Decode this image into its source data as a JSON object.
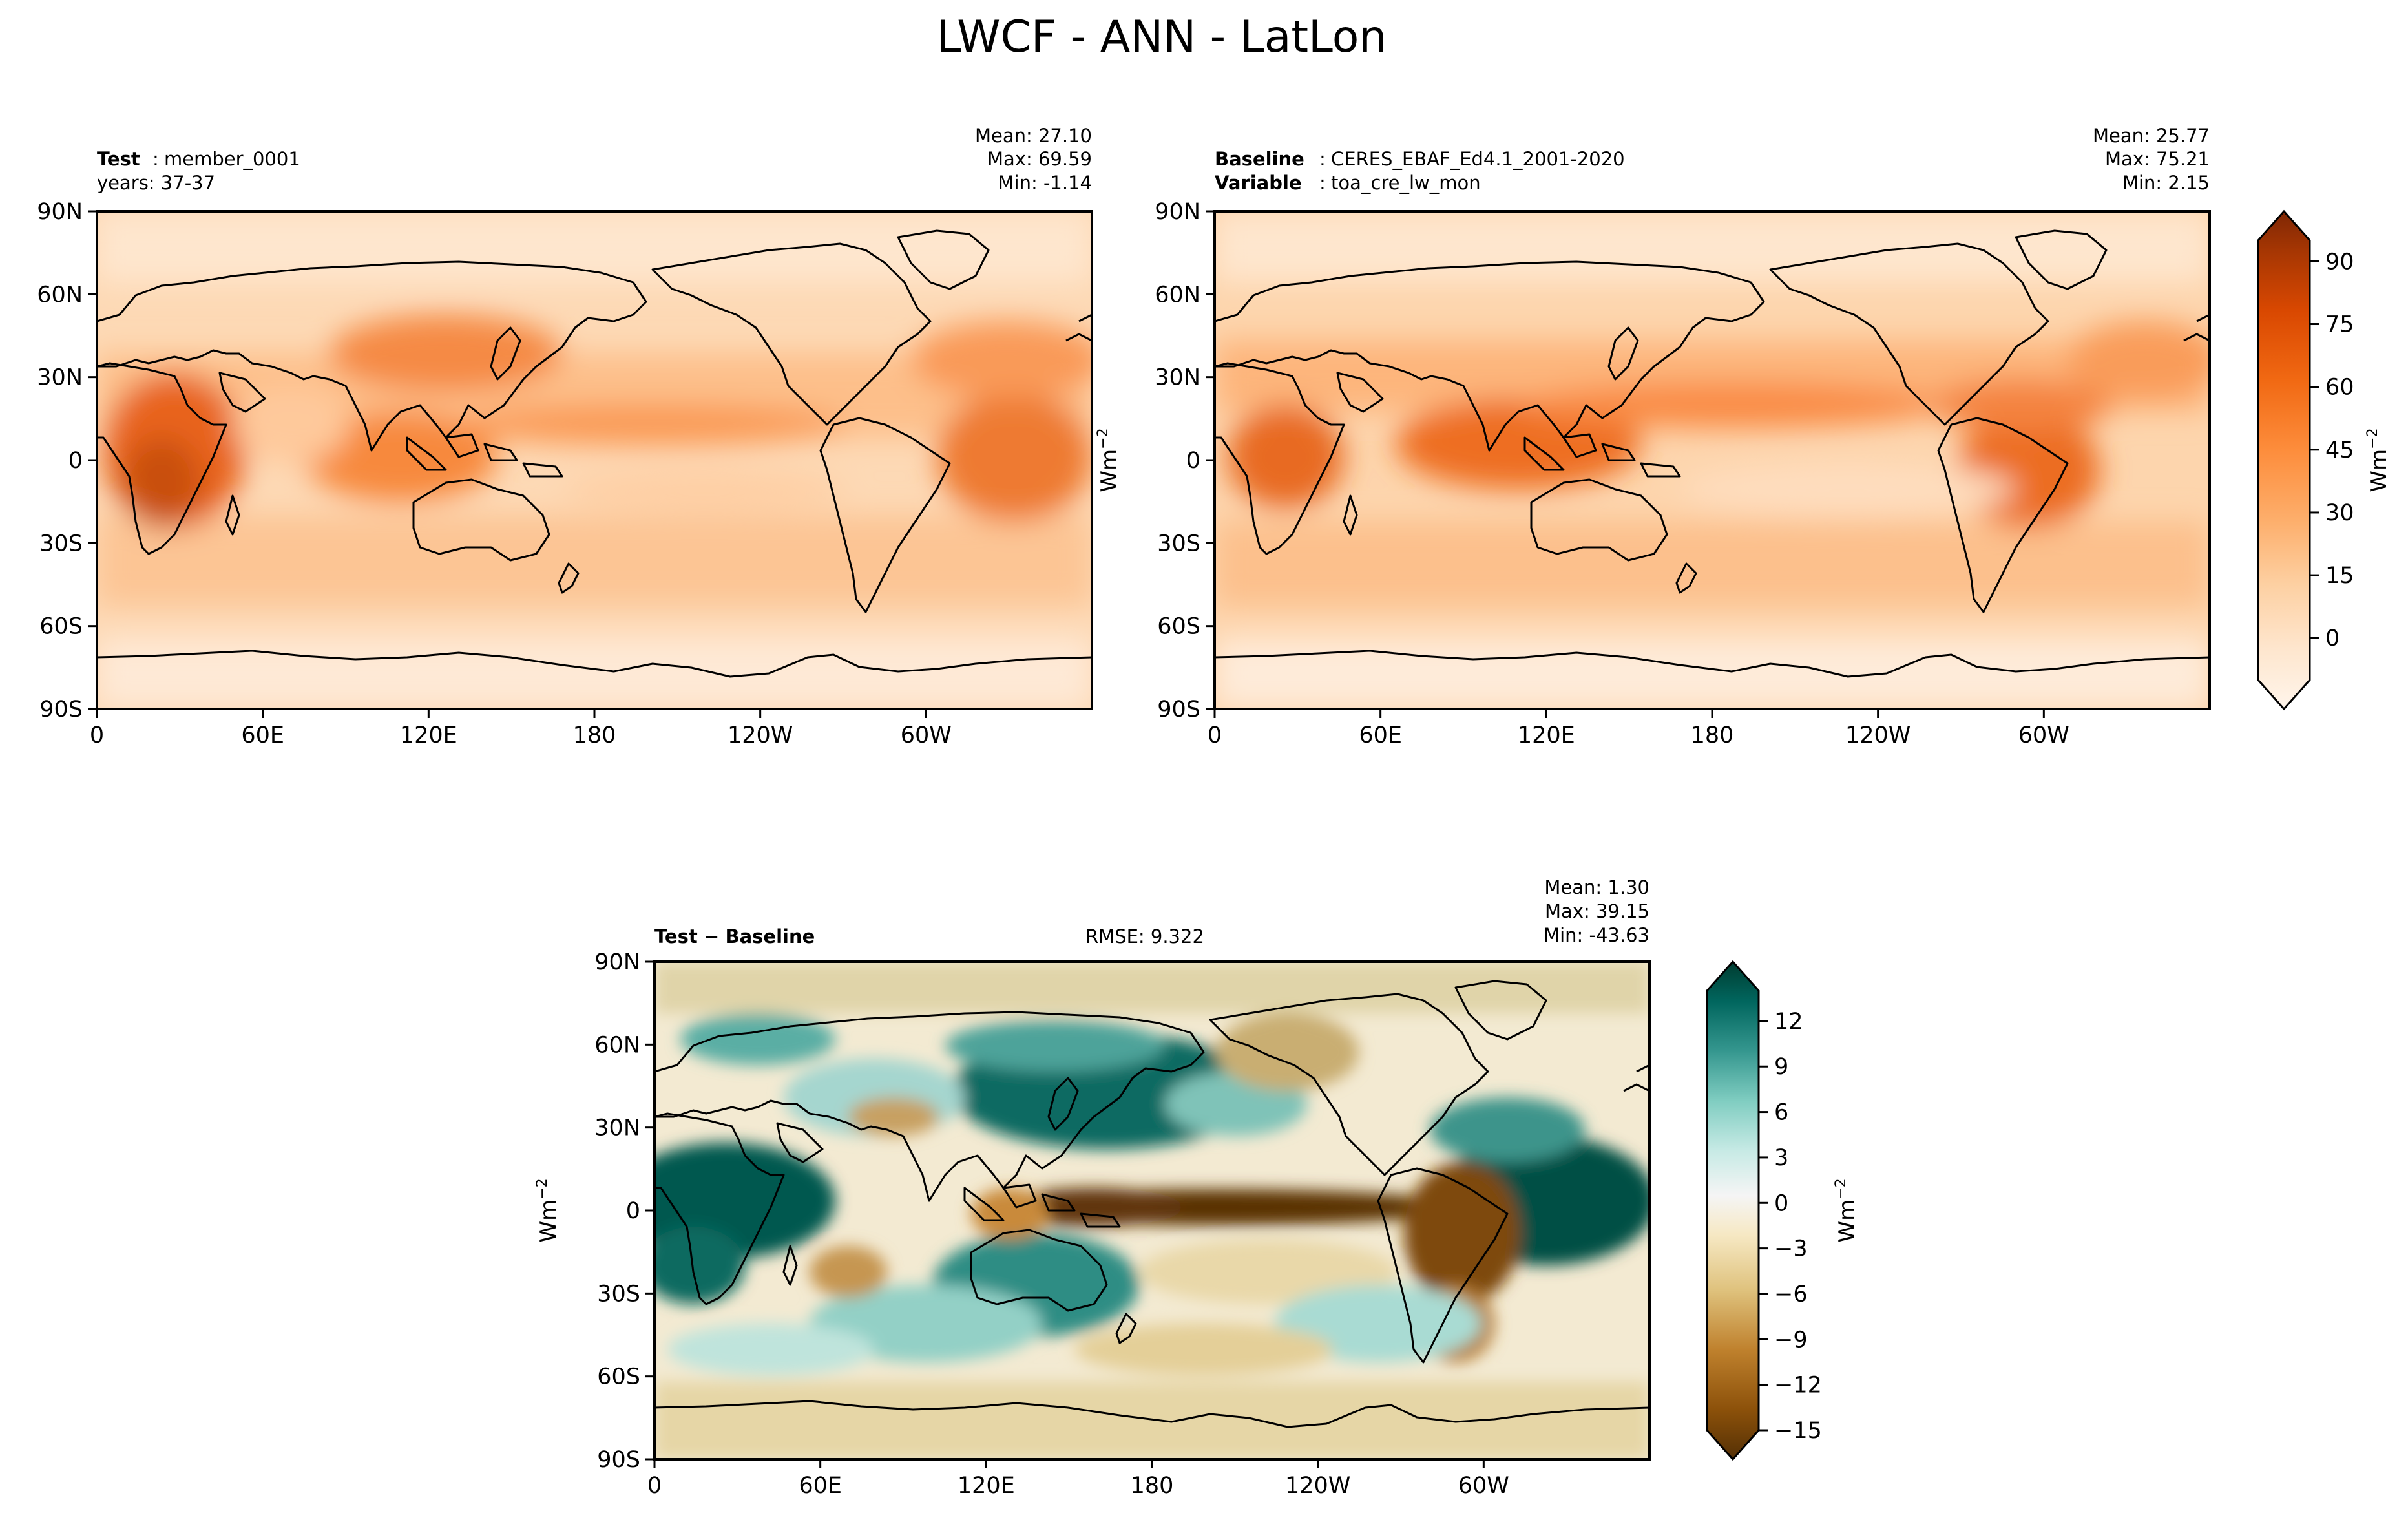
{
  "figure": {
    "title": "LWCF - ANN - LatLon"
  },
  "chart_data": [
    {
      "type": "heatmap",
      "panel": "test",
      "header_bold": "Test",
      "header_text": "member_0001",
      "subheader_text": "years: 37-37",
      "stats": {
        "mean": "Mean: 27.10",
        "max": "Max: 69.59",
        "min": "Min: -1.14"
      },
      "x_ticks": [
        "0",
        "60E",
        "120E",
        "180",
        "120W",
        "60W"
      ],
      "x_values": [
        0,
        60,
        120,
        180,
        240,
        300
      ],
      "y_ticks": [
        "90N",
        "60N",
        "30N",
        "0",
        "30S",
        "60S",
        "90S"
      ],
      "y_values": [
        90,
        60,
        30,
        0,
        -30,
        -60,
        -90
      ],
      "xlim": [
        0,
        360
      ],
      "ylim": [
        -90,
        90
      ],
      "colormap": "Oranges",
      "value_range": [
        -1.14,
        69.59
      ]
    },
    {
      "type": "heatmap",
      "panel": "baseline",
      "header_bold": "Baseline",
      "header_text": "CERES_EBAF_Ed4.1_2001-2020",
      "subheader_bold": "Variable",
      "subheader_text": "toa_cre_lw_mon",
      "stats": {
        "mean": "Mean: 25.77",
        "max": "Max: 75.21",
        "min": "Min:  2.15"
      },
      "x_ticks": [
        "0",
        "60E",
        "120E",
        "180",
        "120W",
        "60W"
      ],
      "x_values": [
        0,
        60,
        120,
        180,
        240,
        300
      ],
      "y_ticks": [
        "90N",
        "60N",
        "30N",
        "0",
        "30S",
        "60S",
        "90S"
      ],
      "y_values": [
        90,
        60,
        30,
        0,
        -30,
        -60,
        -90
      ],
      "xlim": [
        0,
        360
      ],
      "ylim": [
        -90,
        90
      ],
      "colormap": "Oranges",
      "value_range": [
        2.15,
        75.21
      ],
      "colorbar": {
        "label": "Wm",
        "label_sup": "−2",
        "ticks": [
          "0",
          "15",
          "30",
          "45",
          "60",
          "75",
          "90"
        ],
        "tick_values": [
          0,
          15,
          30,
          45,
          60,
          75,
          90
        ],
        "range": [
          -10,
          95
        ],
        "extend": "both"
      }
    },
    {
      "type": "heatmap",
      "panel": "difference",
      "header_bold_1": "Test",
      "header_sep": " − ",
      "header_bold_2": "Baseline",
      "rmse": "RMSE: 9.322",
      "stats": {
        "mean": "Mean:  1.30",
        "max": "Max: 39.15",
        "min": "Min: -43.63"
      },
      "x_ticks": [
        "0",
        "60E",
        "120E",
        "180",
        "120W",
        "60W"
      ],
      "x_values": [
        0,
        60,
        120,
        180,
        240,
        300
      ],
      "y_ticks": [
        "90N",
        "60N",
        "30N",
        "0",
        "30S",
        "60S",
        "90S"
      ],
      "y_values": [
        90,
        60,
        30,
        0,
        -30,
        -60,
        -90
      ],
      "xlim": [
        0,
        360
      ],
      "ylim": [
        -90,
        90
      ],
      "colormap": "BrBG",
      "value_range": [
        -43.63,
        39.15
      ],
      "colorbar": {
        "label": "Wm",
        "label_sup": "−2",
        "ticks": [
          "12",
          "9",
          "6",
          "3",
          "0",
          "−3",
          "−6",
          "−9",
          "−12",
          "−15"
        ],
        "tick_values": [
          12,
          9,
          6,
          3,
          0,
          -3,
          -6,
          -9,
          -12,
          -15
        ],
        "range": [
          -15,
          14
        ],
        "extend": "both"
      }
    }
  ],
  "y_axis_label": {
    "text": "Wm",
    "sup": "−2"
  },
  "colors": {
    "oranges": [
      "#fff5eb",
      "#fee6ce",
      "#fdd0a2",
      "#fdae6b",
      "#fd8d3c",
      "#f16913",
      "#d94801",
      "#a63603",
      "#7f2704"
    ],
    "brbg": [
      "#543005",
      "#8c510a",
      "#bf812d",
      "#dfc27d",
      "#f6e8c3",
      "#f5f5f5",
      "#c7eae5",
      "#80cdc1",
      "#35978f",
      "#01665e",
      "#003c30"
    ],
    "coastline": "#000000"
  }
}
